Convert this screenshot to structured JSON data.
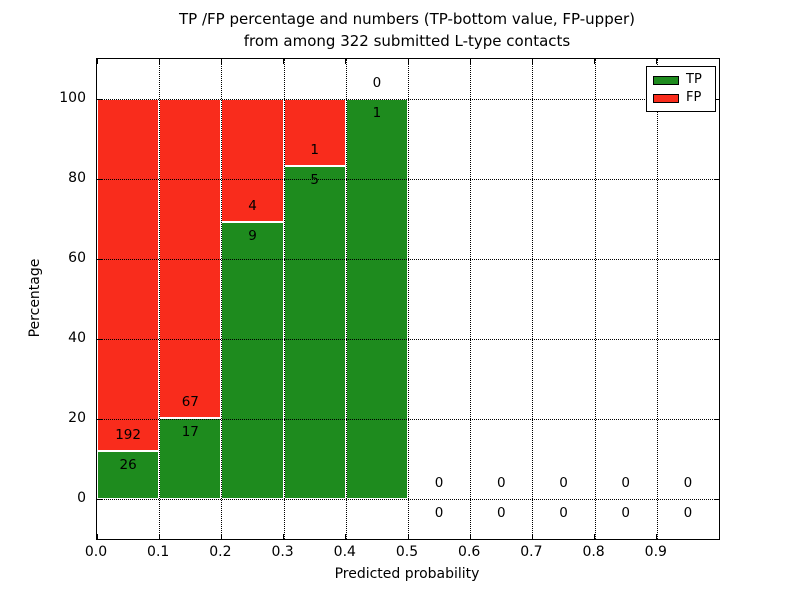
{
  "chart_data": {
    "type": "bar",
    "stacked": true,
    "title_line1": "TP /FP percentage and numbers (TP-bottom value, FP-upper)",
    "title_line2": "from among 322 submitted L-type contacts",
    "xlabel": "Predicted probability",
    "ylabel": "Percentage",
    "total_contacts": 322,
    "xlim": [
      0.0,
      1.0
    ],
    "ylim": [
      -10,
      110
    ],
    "x_tick_labels": [
      "0.0",
      "0.1",
      "0.2",
      "0.3",
      "0.4",
      "0.5",
      "0.6",
      "0.7",
      "0.8",
      "0.9"
    ],
    "y_tick_values": [
      0,
      20,
      40,
      60,
      80,
      100
    ],
    "grid": "dotted",
    "bar_edge_color": "#ffffff",
    "bins": [
      {
        "x_range": [
          0.0,
          0.1
        ],
        "tp": 26,
        "fp": 192
      },
      {
        "x_range": [
          0.1,
          0.2
        ],
        "tp": 17,
        "fp": 67
      },
      {
        "x_range": [
          0.2,
          0.3
        ],
        "tp": 9,
        "fp": 4
      },
      {
        "x_range": [
          0.3,
          0.4
        ],
        "tp": 5,
        "fp": 1
      },
      {
        "x_range": [
          0.4,
          0.5
        ],
        "tp": 1,
        "fp": 0
      },
      {
        "x_range": [
          0.5,
          0.6
        ],
        "tp": 0,
        "fp": 0
      },
      {
        "x_range": [
          0.6,
          0.7
        ],
        "tp": 0,
        "fp": 0
      },
      {
        "x_range": [
          0.7,
          0.8
        ],
        "tp": 0,
        "fp": 0
      },
      {
        "x_range": [
          0.8,
          0.9
        ],
        "tp": 0,
        "fp": 0
      },
      {
        "x_range": [
          0.9,
          1.0
        ],
        "tp": 0,
        "fp": 0
      }
    ],
    "legend": {
      "position": "upper-right",
      "entries": [
        {
          "label": "TP",
          "color": "#1e8b1e"
        },
        {
          "label": "FP",
          "color": "#f92c1c"
        }
      ]
    }
  }
}
